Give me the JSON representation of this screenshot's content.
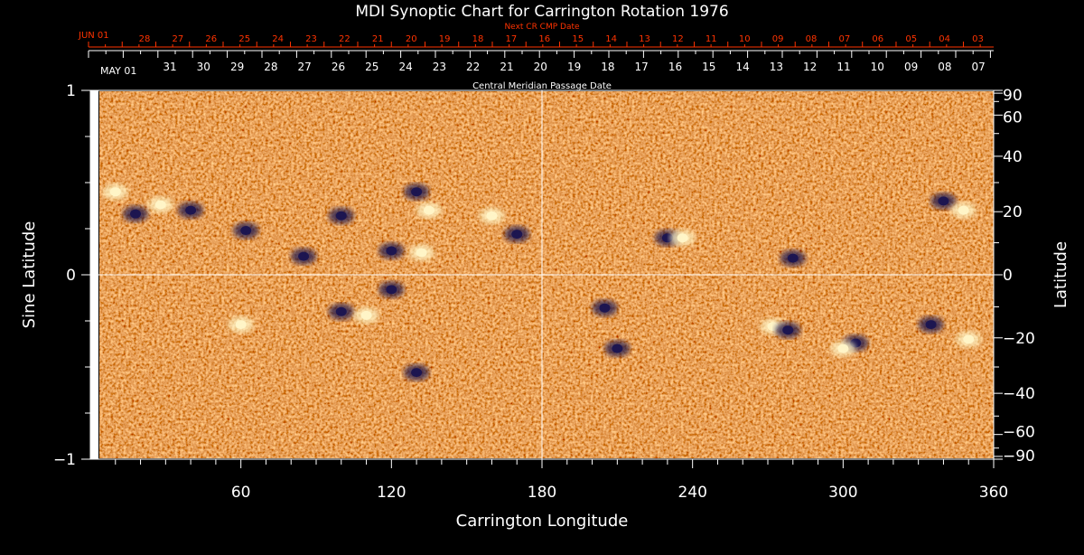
{
  "chart_data": {
    "type": "heatmap",
    "title": "MDI Synoptic Chart for Carrington Rotation 1976",
    "xlabel": "Carrington Longitude",
    "ylabel_left": "Sine Latitude",
    "ylabel_right": "Latitude",
    "xlim": [
      0,
      360
    ],
    "ylim": [
      -1,
      1
    ],
    "x_ticks": [
      "60",
      "120",
      "180",
      "240",
      "300",
      "360"
    ],
    "x_tick_values": [
      60,
      120,
      180,
      240,
      300,
      360
    ],
    "y_left_ticks": [
      "1",
      "0",
      "−1"
    ],
    "y_left_tick_values": [
      1,
      0,
      -1
    ],
    "y_right_ticks": [
      "90",
      "60",
      "40",
      "20",
      "0",
      "−20",
      "−40",
      "−60",
      "−90"
    ],
    "y_right_tick_values": [
      90,
      60,
      40,
      20,
      0,
      -20,
      -40,
      -60,
      -90
    ],
    "grid_lines": {
      "longitude": 180,
      "sine_latitude": 0
    },
    "next_cr_axis": {
      "label": "Next CR CMP Date",
      "first_label": "JUN 01",
      "dates": [
        "28",
        "27",
        "26",
        "25",
        "24",
        "23",
        "22",
        "21",
        "20",
        "19",
        "18",
        "17",
        "16",
        "15",
        "14",
        "13",
        "12",
        "11",
        "10",
        "09",
        "08",
        "07",
        "06",
        "05",
        "04",
        "03"
      ]
    },
    "cmp_axis": {
      "label": "Central Meridian Passage Date",
      "first_label": "MAY 01",
      "dates": [
        "31",
        "30",
        "29",
        "28",
        "27",
        "26",
        "25",
        "24",
        "23",
        "22",
        "21",
        "20",
        "19",
        "18",
        "17",
        "16",
        "15",
        "14",
        "13",
        "12",
        "11",
        "10",
        "09",
        "08",
        "07"
      ]
    },
    "colors": {
      "background": "#ff5a1e",
      "negative_polarity": "#1a1450",
      "positive_polarity": "#fff6c8",
      "axis_top": "#ff3300",
      "axis": "#ffffff"
    },
    "active_regions": [
      {
        "lon": 10,
        "sinlat": 0.45,
        "polarity": "positive"
      },
      {
        "lon": 18,
        "sinlat": 0.33,
        "polarity": "negative"
      },
      {
        "lon": 28,
        "sinlat": 0.38,
        "polarity": "positive"
      },
      {
        "lon": 40,
        "sinlat": 0.35,
        "polarity": "negative"
      },
      {
        "lon": 62,
        "sinlat": 0.24,
        "polarity": "negative"
      },
      {
        "lon": 85,
        "sinlat": 0.1,
        "polarity": "negative"
      },
      {
        "lon": 100,
        "sinlat": 0.32,
        "polarity": "negative"
      },
      {
        "lon": 120,
        "sinlat": 0.13,
        "polarity": "negative"
      },
      {
        "lon": 132,
        "sinlat": 0.12,
        "polarity": "positive"
      },
      {
        "lon": 135,
        "sinlat": 0.35,
        "polarity": "positive"
      },
      {
        "lon": 130,
        "sinlat": 0.45,
        "polarity": "negative"
      },
      {
        "lon": 160,
        "sinlat": 0.32,
        "polarity": "positive"
      },
      {
        "lon": 170,
        "sinlat": 0.22,
        "polarity": "negative"
      },
      {
        "lon": 230,
        "sinlat": 0.2,
        "polarity": "negative"
      },
      {
        "lon": 236,
        "sinlat": 0.2,
        "polarity": "positive"
      },
      {
        "lon": 280,
        "sinlat": 0.09,
        "polarity": "negative"
      },
      {
        "lon": 340,
        "sinlat": 0.4,
        "polarity": "negative"
      },
      {
        "lon": 348,
        "sinlat": 0.35,
        "polarity": "positive"
      },
      {
        "lon": 100,
        "sinlat": -0.2,
        "polarity": "negative"
      },
      {
        "lon": 110,
        "sinlat": -0.22,
        "polarity": "positive"
      },
      {
        "lon": 120,
        "sinlat": -0.08,
        "polarity": "negative"
      },
      {
        "lon": 60,
        "sinlat": -0.27,
        "polarity": "positive"
      },
      {
        "lon": 205,
        "sinlat": -0.18,
        "polarity": "negative"
      },
      {
        "lon": 272,
        "sinlat": -0.28,
        "polarity": "positive"
      },
      {
        "lon": 278,
        "sinlat": -0.3,
        "polarity": "negative"
      },
      {
        "lon": 305,
        "sinlat": -0.37,
        "polarity": "negative"
      },
      {
        "lon": 300,
        "sinlat": -0.4,
        "polarity": "positive"
      },
      {
        "lon": 335,
        "sinlat": -0.27,
        "polarity": "negative"
      },
      {
        "lon": 350,
        "sinlat": -0.35,
        "polarity": "positive"
      },
      {
        "lon": 210,
        "sinlat": -0.4,
        "polarity": "negative"
      },
      {
        "lon": 130,
        "sinlat": -0.53,
        "polarity": "negative"
      }
    ]
  }
}
